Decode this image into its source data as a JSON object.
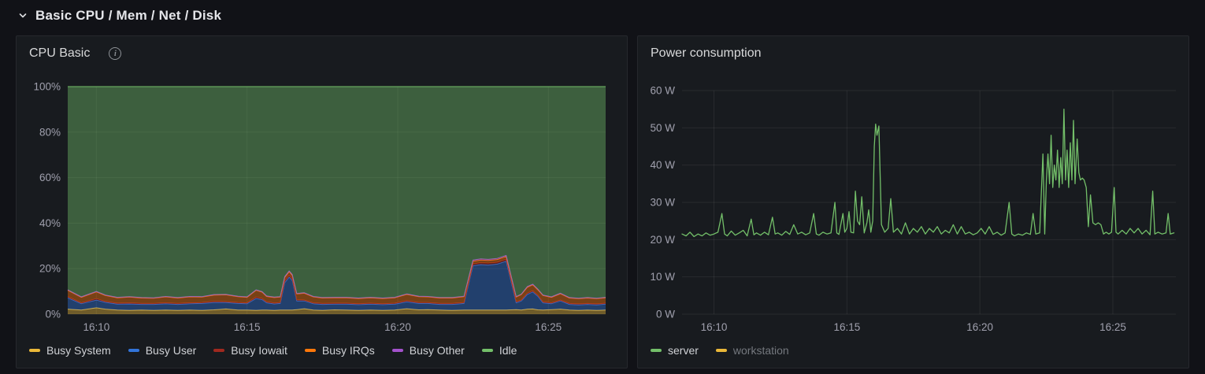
{
  "row_header": {
    "title": "Basic CPU / Mem / Net / Disk"
  },
  "panels": {
    "cpu": {
      "title": "CPU Basic",
      "info_icon": "info-circle"
    },
    "power": {
      "title": "Power consumption"
    }
  },
  "colors": {
    "busy_system": "#EAB839",
    "busy_user": "#3274D9",
    "busy_iowait": "#A0291F",
    "busy_irqs": "#FF780A",
    "busy_other": "#A352CC",
    "idle": "#73BF69",
    "server": "#73BF69",
    "workstation": "#EAB839"
  },
  "chart_data": [
    {
      "id": "cpu-basic",
      "type": "area",
      "stacked": true,
      "title": "CPU Basic",
      "x_unit": "time of day, minutes since 16:00",
      "x_min": 9.05,
      "x_max": 26.9,
      "y_min": 0,
      "y_max": 100,
      "grid": true,
      "legend_position": "bottom",
      "y_ticks": [
        {
          "v": 0,
          "label": "0%"
        },
        {
          "v": 20,
          "label": "20%"
        },
        {
          "v": 40,
          "label": "40%"
        },
        {
          "v": 60,
          "label": "60%"
        },
        {
          "v": 80,
          "label": "80%"
        },
        {
          "v": 100,
          "label": "100%"
        }
      ],
      "x_ticks": [
        {
          "v": 10,
          "label": "16:10"
        },
        {
          "v": 15,
          "label": "16:15"
        },
        {
          "v": 20,
          "label": "16:20"
        },
        {
          "v": 25,
          "label": "16:25"
        }
      ],
      "x": [
        9.05,
        9.5,
        10.0,
        10.3,
        10.7,
        11.1,
        11.5,
        11.9,
        12.3,
        12.7,
        13.1,
        13.5,
        13.9,
        14.3,
        14.7,
        15.0,
        15.3,
        15.5,
        15.65,
        15.9,
        16.1,
        16.25,
        16.4,
        16.5,
        16.65,
        16.9,
        17.2,
        17.5,
        17.9,
        18.3,
        18.7,
        19.1,
        19.5,
        19.9,
        20.3,
        20.7,
        21.0,
        21.4,
        21.8,
        22.2,
        22.5,
        22.76,
        23.0,
        23.3,
        23.6,
        23.93,
        24.1,
        24.3,
        24.48,
        24.65,
        24.82,
        25.1,
        25.4,
        25.7,
        26.0,
        26.3,
        26.6,
        26.9
      ],
      "series": [
        {
          "name": "Busy System",
          "color": "#EAB839",
          "values": [
            2.2,
            1.8,
            2.8,
            2.2,
            1.8,
            1.7,
            1.8,
            1.7,
            1.8,
            1.7,
            1.8,
            1.7,
            1.9,
            2.3,
            1.8,
            1.8,
            1.7,
            1.8,
            1.8,
            1.7,
            1.8,
            1.8,
            1.8,
            1.8,
            2.0,
            2.4,
            1.8,
            1.7,
            1.9,
            1.8,
            1.7,
            1.8,
            1.7,
            1.8,
            2.4,
            1.9,
            2.0,
            1.8,
            1.7,
            1.8,
            1.8,
            1.8,
            1.8,
            1.8,
            1.8,
            2.0,
            1.8,
            2.2,
            2.3,
            1.9,
            1.8,
            2.0,
            2.2,
            1.8,
            1.7,
            1.8,
            1.7,
            1.8
          ]
        },
        {
          "name": "Busy User",
          "color": "#3274D9",
          "values": [
            5.0,
            2.8,
            3.4,
            3.0,
            2.6,
            2.8,
            2.5,
            2.6,
            2.8,
            2.6,
            2.8,
            3.0,
            3.2,
            2.8,
            2.9,
            2.8,
            5.2,
            4.6,
            3.2,
            2.8,
            2.9,
            12.0,
            14.5,
            13.0,
            3.8,
            3.4,
            2.8,
            2.6,
            2.5,
            2.6,
            2.5,
            2.6,
            2.5,
            2.6,
            3.0,
            2.8,
            2.7,
            2.5,
            2.6,
            2.9,
            19.5,
            20.0,
            19.8,
            20.2,
            21.5,
            3.0,
            4.0,
            6.5,
            7.5,
            6.0,
            3.2,
            2.6,
            3.6,
            2.5,
            2.4,
            2.5,
            2.4,
            2.6
          ]
        },
        {
          "name": "Busy Iowait",
          "color": "#A0291F",
          "values": [
            0.5,
            0.4,
            0.6,
            0.4,
            0.4,
            0.4,
            0.4,
            0.4,
            0.4,
            0.4,
            0.4,
            0.4,
            0.5,
            0.4,
            0.4,
            0.4,
            0.6,
            0.5,
            0.4,
            0.4,
            0.4,
            0.8,
            0.8,
            0.7,
            0.5,
            0.4,
            0.4,
            0.4,
            0.4,
            0.4,
            0.4,
            0.4,
            0.4,
            0.4,
            0.5,
            0.4,
            0.4,
            0.4,
            0.4,
            0.4,
            0.8,
            0.8,
            0.8,
            0.8,
            0.8,
            0.5,
            0.4,
            0.5,
            0.5,
            0.4,
            0.4,
            0.4,
            0.4,
            0.4,
            0.4,
            0.4,
            0.4,
            0.4
          ]
        },
        {
          "name": "Busy IRQs",
          "color": "#FF780A",
          "values": [
            2.8,
            2.4,
            3.0,
            2.6,
            2.4,
            2.6,
            2.4,
            2.3,
            2.6,
            2.4,
            2.6,
            2.4,
            2.8,
            3.0,
            2.6,
            2.4,
            3.0,
            2.8,
            2.4,
            2.4,
            2.4,
            1.5,
            1.5,
            1.5,
            2.6,
            3.0,
            2.6,
            2.4,
            2.4,
            2.4,
            2.3,
            2.4,
            2.3,
            2.4,
            2.8,
            2.6,
            2.5,
            2.4,
            2.4,
            2.6,
            1.2,
            1.2,
            1.2,
            1.2,
            1.2,
            2.0,
            2.4,
            2.6,
            2.6,
            2.4,
            2.8,
            2.4,
            2.8,
            2.4,
            2.3,
            2.4,
            2.3,
            2.4
          ]
        },
        {
          "name": "Busy Other",
          "color": "#A352CC",
          "values": [
            0.2,
            0.2,
            0.2,
            0.2,
            0.2,
            0.2,
            0.2,
            0.2,
            0.2,
            0.2,
            0.2,
            0.2,
            0.2,
            0.2,
            0.2,
            0.2,
            0.2,
            0.2,
            0.2,
            0.2,
            0.2,
            0.4,
            0.4,
            0.4,
            0.2,
            0.2,
            0.2,
            0.2,
            0.2,
            0.2,
            0.2,
            0.2,
            0.2,
            0.2,
            0.2,
            0.2,
            0.2,
            0.2,
            0.2,
            0.2,
            0.5,
            0.5,
            0.5,
            0.5,
            0.5,
            0.2,
            0.2,
            0.3,
            0.3,
            0.3,
            0.2,
            0.2,
            0.2,
            0.2,
            0.2,
            0.2,
            0.2,
            0.2
          ]
        },
        {
          "name": "Idle",
          "color": "#73BF69",
          "remainder": true
        }
      ]
    },
    {
      "id": "power-consumption",
      "type": "line",
      "title": "Power consumption",
      "x_unit": "time of day, minutes since 16:00",
      "x_min": 8.8,
      "x_max": 27.37,
      "y_min": 0,
      "y_max": 60,
      "grid": true,
      "legend_position": "bottom",
      "y_ticks": [
        {
          "v": 0,
          "label": "0 W"
        },
        {
          "v": 10,
          "label": "10 W"
        },
        {
          "v": 20,
          "label": "20 W"
        },
        {
          "v": 30,
          "label": "30 W"
        },
        {
          "v": 40,
          "label": "40 W"
        },
        {
          "v": 50,
          "label": "50 W"
        },
        {
          "v": 60,
          "label": "60 W"
        }
      ],
      "x_ticks": [
        {
          "v": 10,
          "label": "16:10"
        },
        {
          "v": 15,
          "label": "16:15"
        },
        {
          "v": 20,
          "label": "16:20"
        },
        {
          "v": 25,
          "label": "16:25"
        }
      ],
      "series": [
        {
          "name": "server",
          "color": "#73BF69",
          "hidden": false,
          "x": [
            8.8,
            8.95,
            9.1,
            9.25,
            9.4,
            9.55,
            9.7,
            9.85,
            10.0,
            10.15,
            10.3,
            10.4,
            10.5,
            10.65,
            10.8,
            10.95,
            11.1,
            11.25,
            11.4,
            11.5,
            11.6,
            11.75,
            11.9,
            12.05,
            12.2,
            12.3,
            12.4,
            12.55,
            12.7,
            12.85,
            13.0,
            13.15,
            13.3,
            13.45,
            13.6,
            13.75,
            13.85,
            13.95,
            14.1,
            14.25,
            14.4,
            14.55,
            14.62,
            14.7,
            14.85,
            14.92,
            15.0,
            15.08,
            15.15,
            15.25,
            15.32,
            15.4,
            15.48,
            15.56,
            15.65,
            15.75,
            15.82,
            15.9,
            15.97,
            16.03,
            16.08,
            16.13,
            16.2,
            16.3,
            16.42,
            16.55,
            16.65,
            16.75,
            16.9,
            17.05,
            17.2,
            17.35,
            17.5,
            17.65,
            17.8,
            17.95,
            18.1,
            18.25,
            18.4,
            18.55,
            18.7,
            18.85,
            19.0,
            19.15,
            19.3,
            19.45,
            19.6,
            19.75,
            19.9,
            20.05,
            20.2,
            20.35,
            20.5,
            20.65,
            20.8,
            20.95,
            21.1,
            21.2,
            21.3,
            21.45,
            21.6,
            21.75,
            21.9,
            22.0,
            22.1,
            22.25,
            22.37,
            22.44,
            22.5,
            22.56,
            22.62,
            22.68,
            22.74,
            22.8,
            22.86,
            22.92,
            22.98,
            23.04,
            23.1,
            23.16,
            23.22,
            23.28,
            23.34,
            23.4,
            23.46,
            23.52,
            23.58,
            23.66,
            23.72,
            23.78,
            23.85,
            23.92,
            24.0,
            24.08,
            24.16,
            24.25,
            24.35,
            24.45,
            24.55,
            24.65,
            24.75,
            24.85,
            24.95,
            25.05,
            25.12,
            25.2,
            25.35,
            25.5,
            25.65,
            25.8,
            25.95,
            26.1,
            26.25,
            26.4,
            26.5,
            26.58,
            26.7,
            26.85,
            27.0,
            27.08,
            27.16,
            27.3
          ],
          "values": [
            21.5,
            21.0,
            22.0,
            20.8,
            21.5,
            21.0,
            21.8,
            21.2,
            21.5,
            22.0,
            27.0,
            21.5,
            21.0,
            22.3,
            21.2,
            21.8,
            22.5,
            21.0,
            25.5,
            21.3,
            21.8,
            21.2,
            22.0,
            21.3,
            26.0,
            21.5,
            21.8,
            21.2,
            22.2,
            21.4,
            24.0,
            21.5,
            22.0,
            21.3,
            21.8,
            27.0,
            21.5,
            21.2,
            22.0,
            21.5,
            21.8,
            30.0,
            21.8,
            21.4,
            27.0,
            22.0,
            23.0,
            27.5,
            22.0,
            21.8,
            33.0,
            25.0,
            24.0,
            31.5,
            21.8,
            24.5,
            28.0,
            22.0,
            25.0,
            45.0,
            51.0,
            48.0,
            50.5,
            24.0,
            22.0,
            23.0,
            31.0,
            22.0,
            23.0,
            21.5,
            24.5,
            21.5,
            23.0,
            22.0,
            23.5,
            21.5,
            23.0,
            22.0,
            23.5,
            21.5,
            22.5,
            21.8,
            24.0,
            21.5,
            23.5,
            21.5,
            22.0,
            21.3,
            21.8,
            23.0,
            21.5,
            23.5,
            21.4,
            22.0,
            21.2,
            21.8,
            30.0,
            21.5,
            21.0,
            21.5,
            21.2,
            21.8,
            21.4,
            27.0,
            21.5,
            21.8,
            43.0,
            21.5,
            36.0,
            43.0,
            35.0,
            48.0,
            34.0,
            40.0,
            36.0,
            44.0,
            34.0,
            42.0,
            35.0,
            55.0,
            36.0,
            44.0,
            34.0,
            46.0,
            36.0,
            52.0,
            35.0,
            47.0,
            38.0,
            36.0,
            36.5,
            36.0,
            34.0,
            23.5,
            32.0,
            24.5,
            24.0,
            24.5,
            24.0,
            21.5,
            22.0,
            21.5,
            22.0,
            34.0,
            22.0,
            21.5,
            22.5,
            21.5,
            23.0,
            21.8,
            23.0,
            21.5,
            22.5,
            21.3,
            33.0,
            21.5,
            22.0,
            21.5,
            21.8,
            27.0,
            21.5,
            21.8
          ]
        },
        {
          "name": "workstation",
          "color": "#EAB839",
          "hidden": true,
          "x": [],
          "values": []
        }
      ]
    }
  ]
}
